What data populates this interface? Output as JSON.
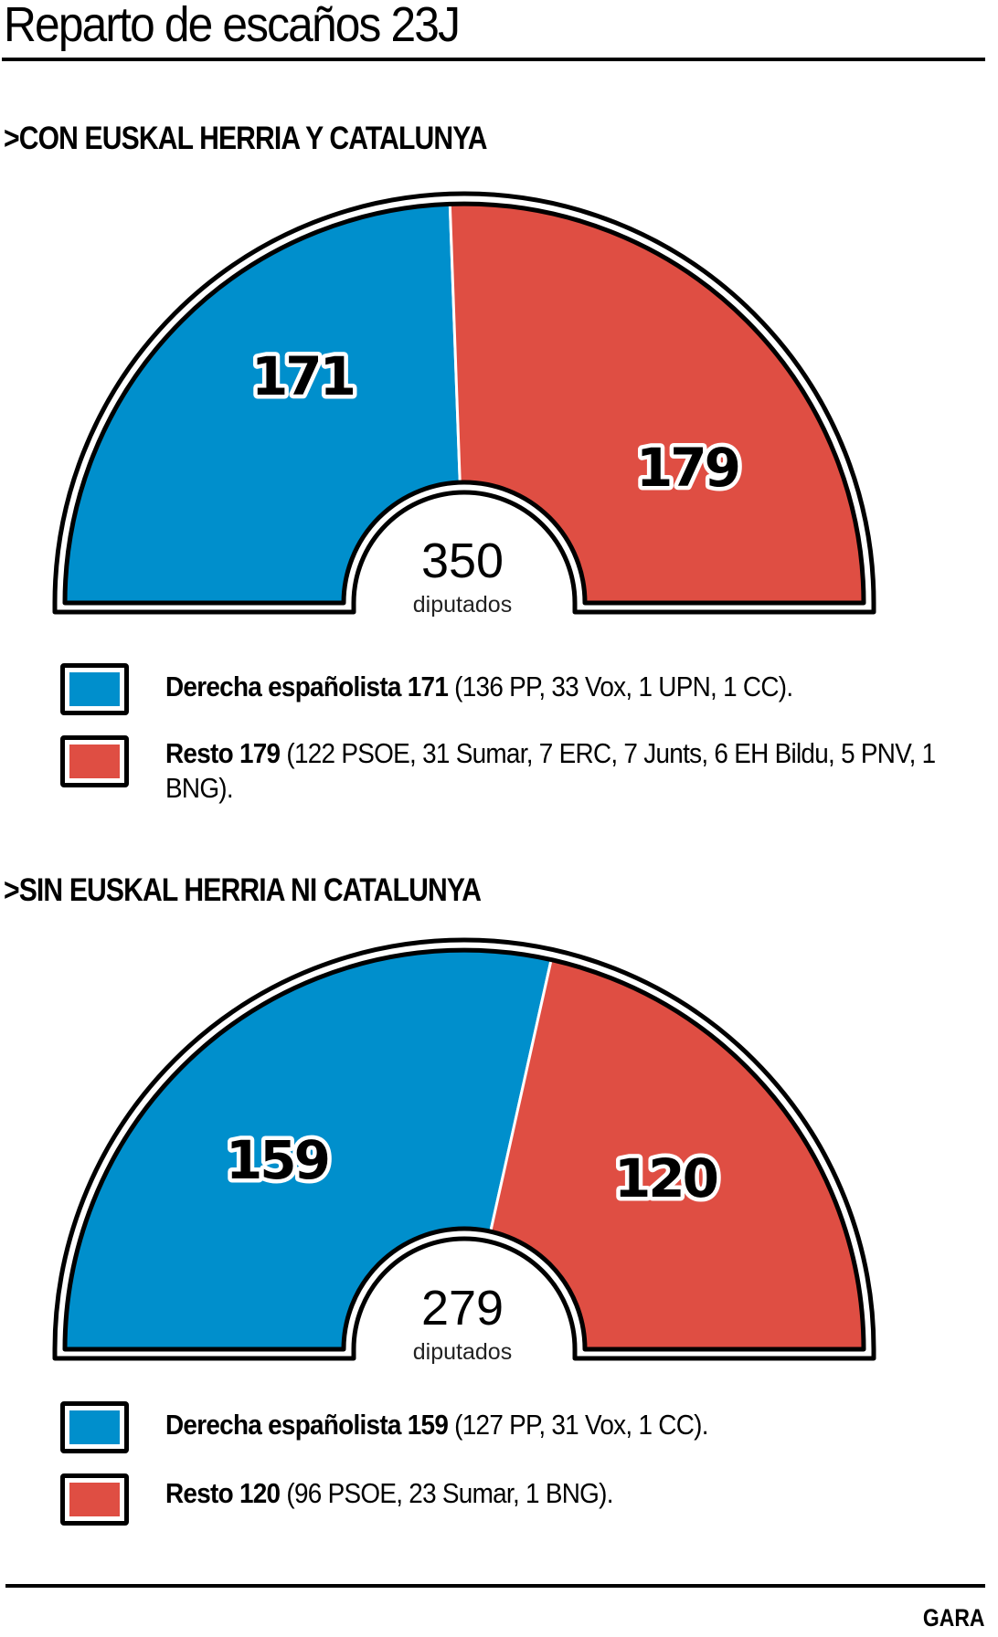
{
  "title": "Reparto de escaños 23J",
  "source": "GARA",
  "colors": {
    "derecha": "#008fcc",
    "resto": "#df4e43"
  },
  "chart_data": [
    {
      "type": "pie",
      "variant": "half-donut parliament",
      "title": ">CON EUSKAL HERRIA Y CATALUNYA",
      "total": 350,
      "total_label": "diputados",
      "categories": [
        "Derecha españolista",
        "Resto"
      ],
      "values": [
        171,
        179
      ],
      "legend": [
        {
          "bold": "Derecha españolista 171",
          "detail": " (136 PP, 33 Vox, 1 UPN, 1 CC)."
        },
        {
          "bold": "Resto 179",
          "detail": " (122 PSOE, 31 Sumar, 7 ERC, 7 Junts, 6 EH Bildu, 5 PNV, 1 BNG)."
        }
      ]
    },
    {
      "type": "pie",
      "variant": "half-donut parliament",
      "title": ">SIN EUSKAL HERRIA NI CATALUNYA",
      "total": 279,
      "total_label": "diputados",
      "categories": [
        "Derecha españolista",
        "Resto"
      ],
      "values": [
        159,
        120
      ],
      "legend": [
        {
          "bold": "Derecha españolista 159",
          "detail": " (127 PP, 31 Vox, 1 CC)."
        },
        {
          "bold": "Resto 120",
          "detail": " (96 PSOE, 23 Sumar, 1 BNG)."
        }
      ]
    }
  ]
}
